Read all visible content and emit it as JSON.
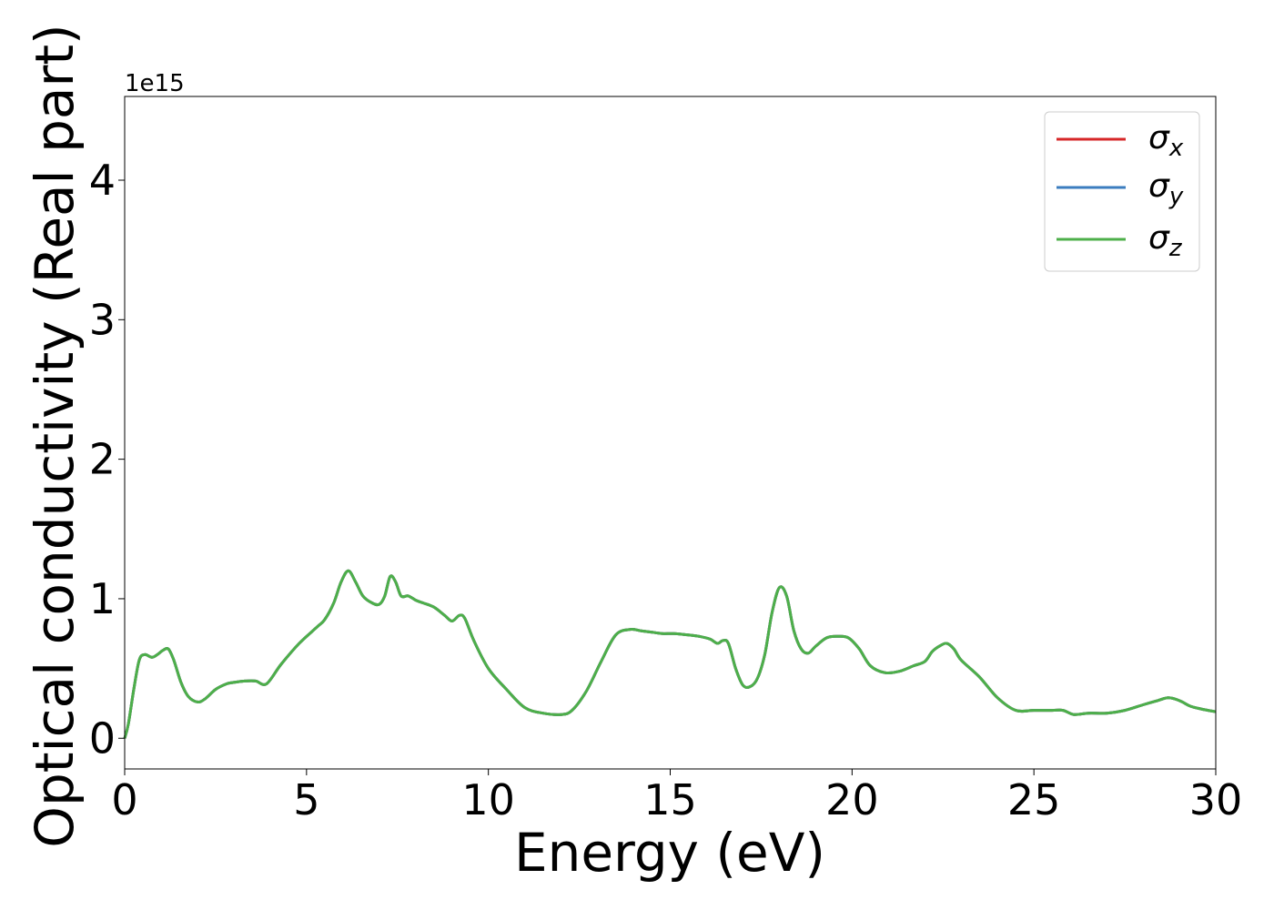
{
  "chart_data": {
    "type": "line",
    "xlabel": "Energy (eV)",
    "ylabel": "Optical conductivity (Real part)",
    "offset_text": "1e15",
    "xlim": [
      0,
      30
    ],
    "ylim": [
      -0.22,
      4.6
    ],
    "y_scale_factor": 1000000000000000.0,
    "grid": false,
    "legend_position": "top-right",
    "x_ticks": [
      0,
      5,
      10,
      15,
      20,
      25,
      30
    ],
    "x_tick_labels": [
      "0",
      "5",
      "10",
      "15",
      "20",
      "25",
      "30"
    ],
    "y_ticks": [
      0,
      1,
      2,
      3,
      4
    ],
    "y_tick_labels": [
      "0",
      "1",
      "2",
      "3",
      "4"
    ],
    "series": [
      {
        "name": "σx",
        "label_base": "σ",
        "label_sub": "x",
        "color": "#d62728"
      },
      {
        "name": "σy",
        "label_base": "σ",
        "label_sub": "y",
        "color": "#3b7dbf"
      },
      {
        "name": "σz",
        "label_base": "σ",
        "label_sub": "z",
        "color": "#4daf4a"
      }
    ],
    "x": [
      0,
      0.1,
      0.25,
      0.4,
      0.55,
      0.75,
      0.9,
      1.05,
      1.2,
      1.35,
      1.55,
      1.75,
      2.0,
      2.2,
      2.5,
      2.8,
      3.0,
      3.3,
      3.6,
      3.9,
      4.3,
      4.8,
      5.3,
      5.5,
      5.75,
      5.95,
      6.15,
      6.35,
      6.55,
      6.8,
      7.0,
      7.15,
      7.3,
      7.45,
      7.6,
      7.8,
      8.0,
      8.2,
      8.5,
      8.8,
      9.0,
      9.2,
      9.35,
      9.6,
      10.0,
      10.5,
      11.0,
      11.5,
      12.0,
      12.3,
      12.7,
      13.1,
      13.5,
      13.9,
      14.2,
      14.5,
      14.8,
      15.1,
      15.5,
      15.8,
      16.1,
      16.3,
      16.45,
      16.6,
      16.8,
      17.0,
      17.2,
      17.4,
      17.6,
      17.8,
      18.0,
      18.2,
      18.4,
      18.6,
      18.8,
      19.0,
      19.3,
      19.6,
      19.9,
      20.2,
      20.5,
      20.9,
      21.3,
      21.7,
      22.0,
      22.2,
      22.4,
      22.6,
      22.8,
      23.0,
      23.5,
      24.0,
      24.5,
      25.0,
      25.5,
      25.8,
      26.1,
      26.5,
      27.0,
      27.5,
      28.0,
      28.4,
      28.7,
      29.0,
      29.3,
      29.6,
      30.0
    ],
    "y": [
      0.0,
      0.1,
      0.35,
      0.56,
      0.6,
      0.58,
      0.6,
      0.63,
      0.64,
      0.56,
      0.4,
      0.3,
      0.26,
      0.28,
      0.35,
      0.39,
      0.4,
      0.41,
      0.41,
      0.39,
      0.53,
      0.68,
      0.8,
      0.85,
      0.97,
      1.12,
      1.2,
      1.12,
      1.02,
      0.97,
      0.96,
      1.02,
      1.16,
      1.12,
      1.02,
      1.02,
      0.99,
      0.97,
      0.94,
      0.88,
      0.84,
      0.88,
      0.86,
      0.7,
      0.5,
      0.35,
      0.22,
      0.18,
      0.17,
      0.2,
      0.34,
      0.55,
      0.74,
      0.78,
      0.77,
      0.76,
      0.75,
      0.75,
      0.74,
      0.73,
      0.71,
      0.68,
      0.7,
      0.68,
      0.5,
      0.38,
      0.37,
      0.43,
      0.6,
      0.9,
      1.08,
      1.02,
      0.77,
      0.64,
      0.61,
      0.66,
      0.72,
      0.73,
      0.72,
      0.64,
      0.52,
      0.47,
      0.48,
      0.52,
      0.55,
      0.62,
      0.66,
      0.68,
      0.64,
      0.56,
      0.44,
      0.29,
      0.2,
      0.2,
      0.2,
      0.2,
      0.17,
      0.18,
      0.18,
      0.2,
      0.24,
      0.27,
      0.29,
      0.27,
      0.23,
      0.21,
      0.19
    ]
  }
}
